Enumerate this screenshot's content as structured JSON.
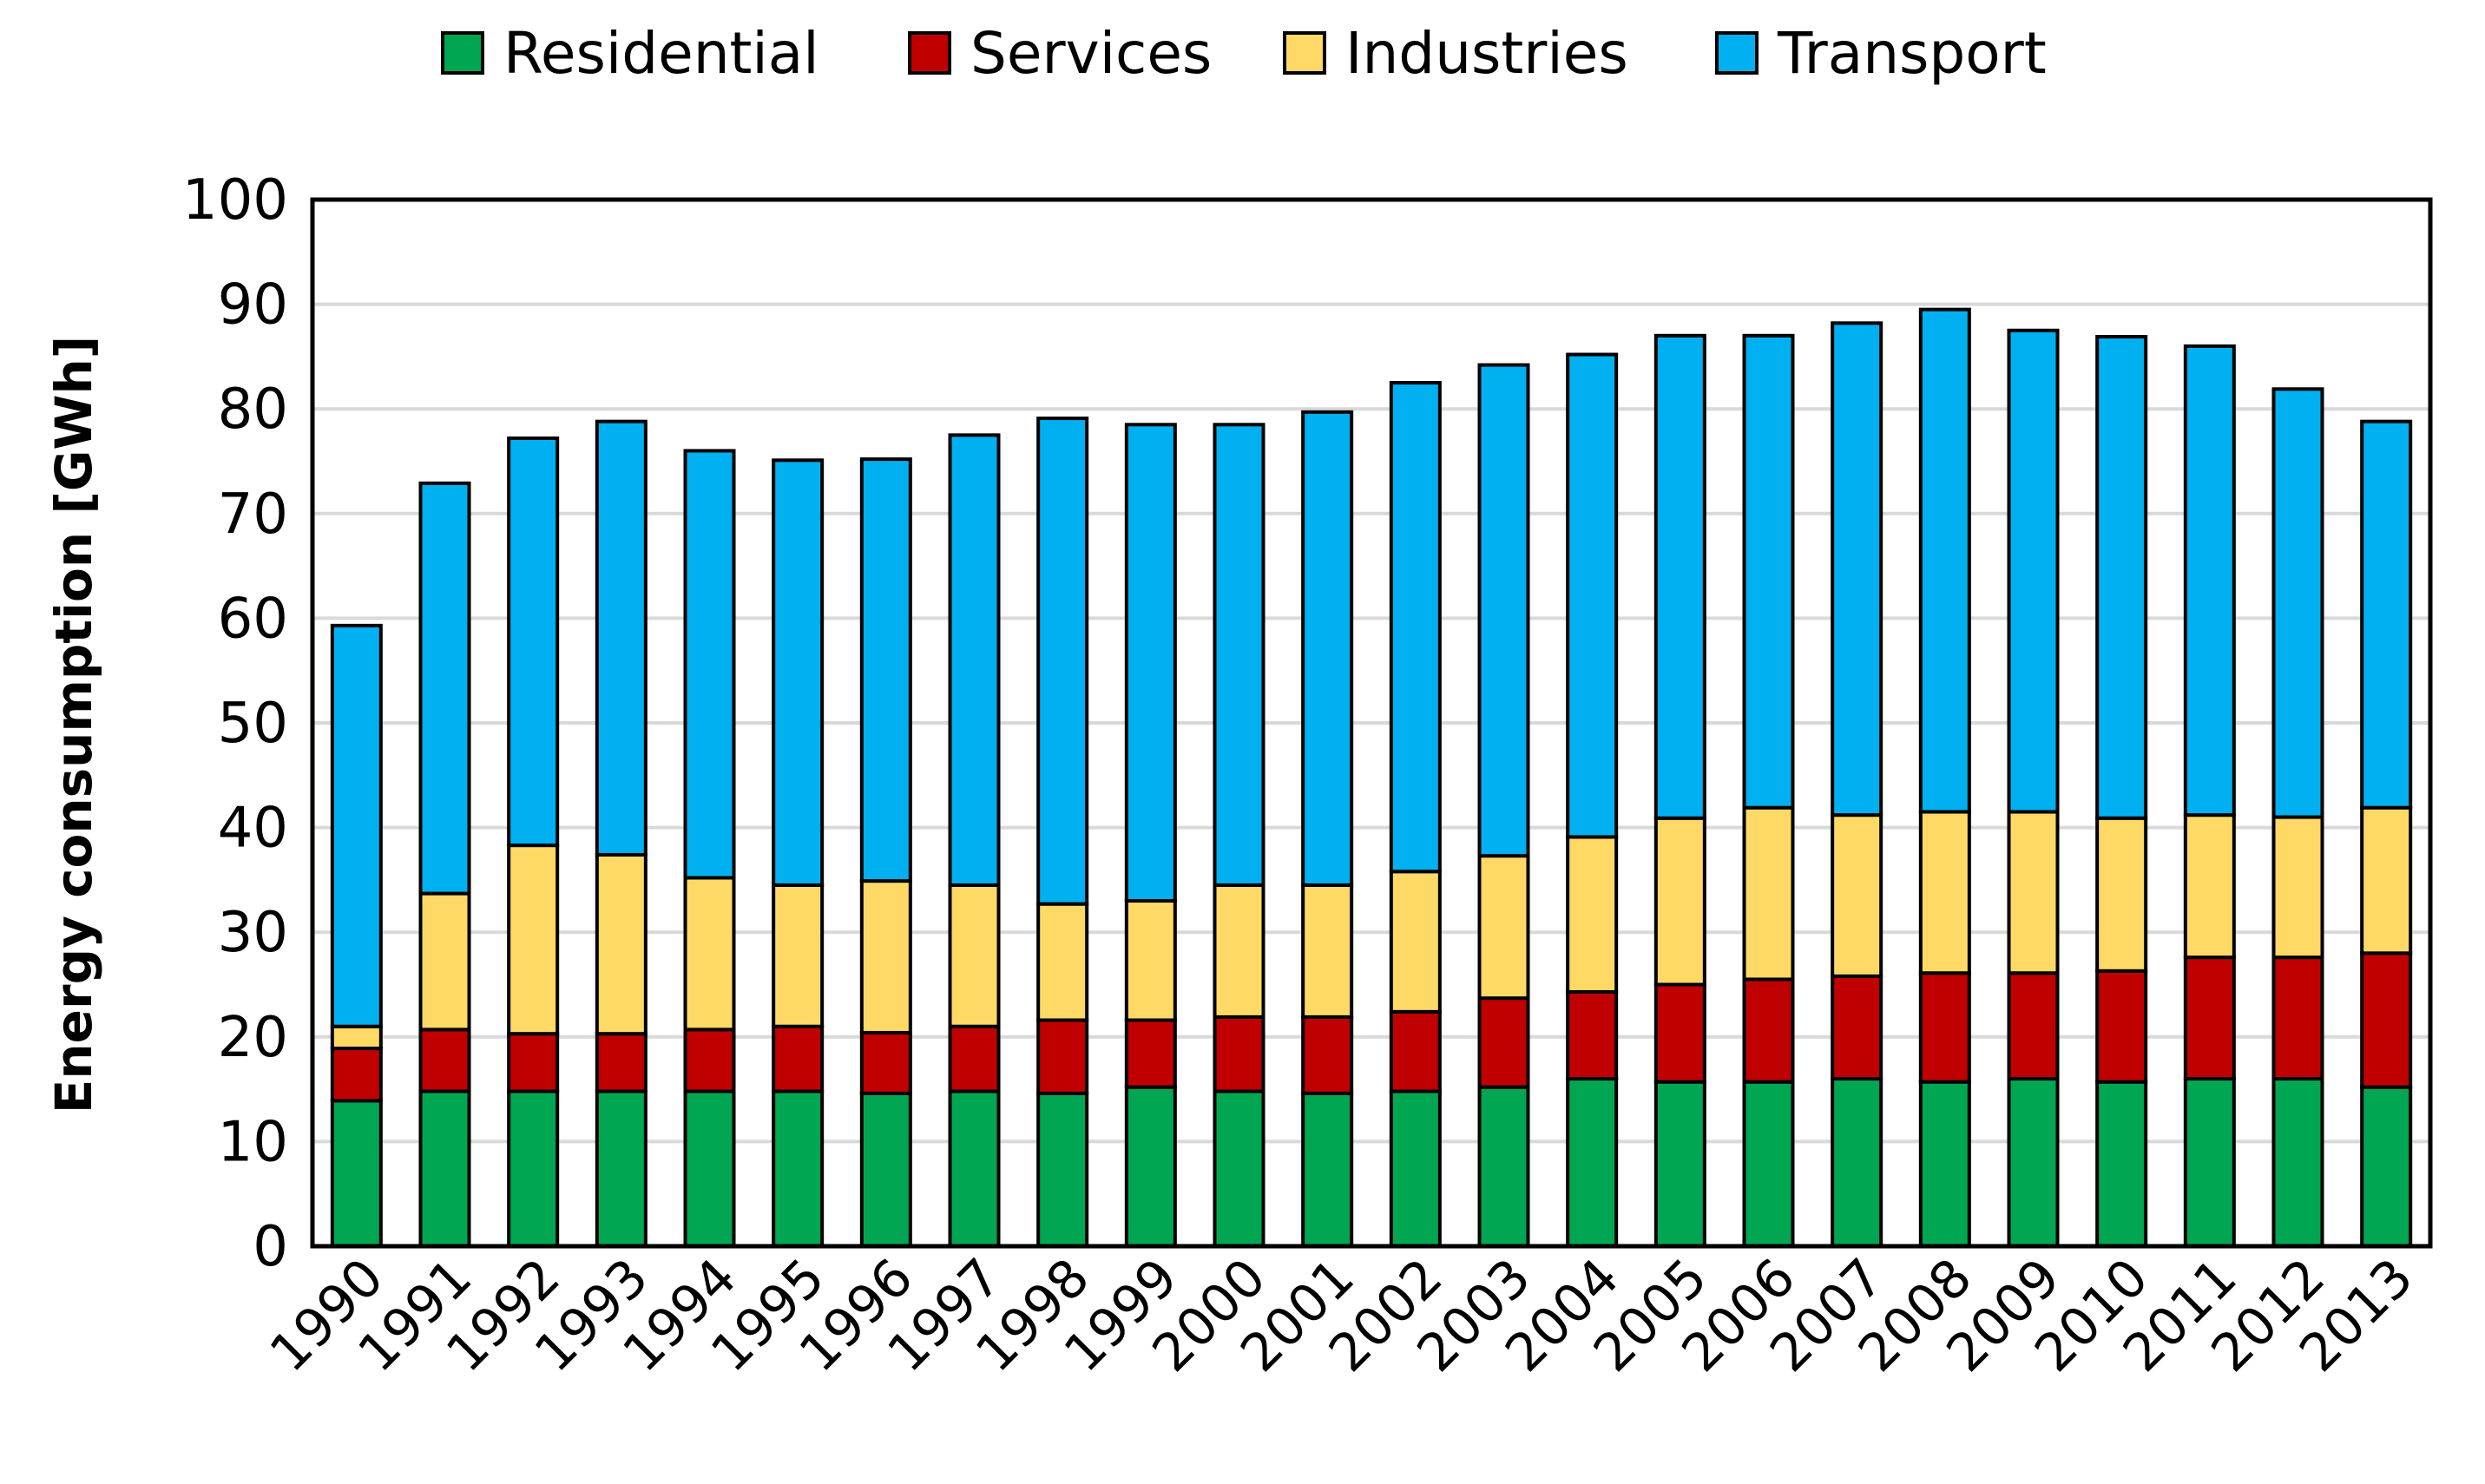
{
  "chart_data": {
    "type": "bar",
    "stacked": true,
    "title": "",
    "xlabel": "",
    "ylabel": "Energy consumption [GWh]",
    "ylim": [
      0,
      100
    ],
    "yticks": [
      0,
      10,
      20,
      30,
      40,
      50,
      60,
      70,
      80,
      90,
      100
    ],
    "grid": true,
    "legend_position": "top",
    "categories": [
      "1990",
      "1991",
      "1992",
      "1993",
      "1994",
      "1995",
      "1996",
      "1997",
      "1998",
      "1999",
      "2000",
      "2001",
      "2002",
      "2003",
      "2004",
      "2005",
      "2006",
      "2007",
      "2008",
      "2009",
      "2010",
      "2011",
      "2012",
      "2013"
    ],
    "series": [
      {
        "name": "Residential",
        "color": "#00a651",
        "values": [
          13.9,
          14.8,
          14.8,
          14.8,
          14.8,
          14.8,
          14.6,
          14.8,
          14.6,
          15.2,
          14.8,
          14.6,
          14.8,
          15.2,
          16.0,
          15.7,
          15.7,
          16.0,
          15.7,
          16.0,
          15.7,
          16.0,
          16.0,
          15.2
        ]
      },
      {
        "name": "Services",
        "color": "#c00000",
        "values": [
          5.0,
          5.9,
          5.5,
          5.5,
          5.9,
          6.2,
          5.8,
          6.2,
          7.0,
          6.4,
          7.1,
          7.3,
          7.6,
          8.5,
          8.3,
          9.3,
          9.8,
          9.8,
          10.4,
          10.1,
          10.6,
          11.6,
          11.6,
          12.8
        ]
      },
      {
        "name": "Industries",
        "color": "#ffd966",
        "values": [
          2.1,
          13.0,
          18.0,
          17.1,
          14.5,
          13.5,
          14.5,
          13.5,
          11.1,
          11.4,
          12.6,
          12.6,
          13.4,
          13.6,
          14.8,
          15.9,
          16.4,
          15.4,
          15.4,
          15.4,
          14.6,
          13.6,
          13.4,
          13.9
        ]
      },
      {
        "name": "Transport",
        "color": "#00b0f0",
        "values": [
          38.3,
          39.2,
          38.9,
          41.4,
          40.8,
          40.6,
          40.3,
          43.0,
          46.4,
          45.5,
          44.0,
          45.2,
          46.7,
          46.9,
          46.1,
          46.1,
          45.1,
          47.0,
          48.0,
          46.0,
          46.0,
          44.8,
          40.9,
          36.9
        ]
      }
    ]
  }
}
